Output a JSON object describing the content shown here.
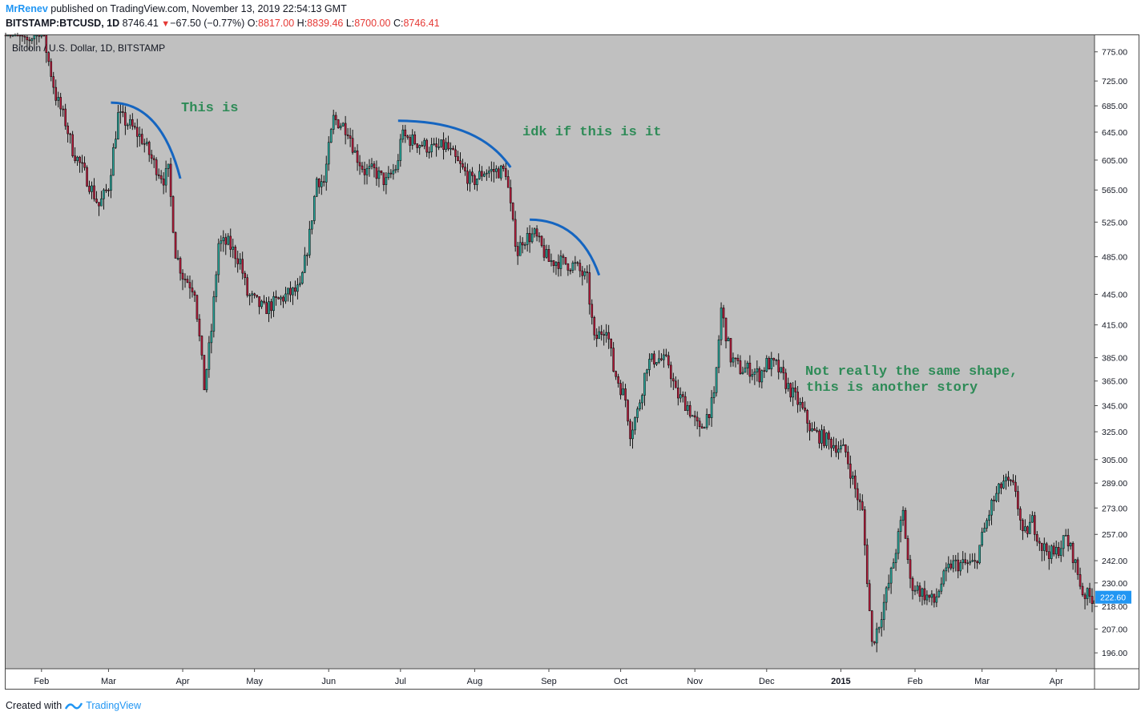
{
  "header": {
    "author": "MrRenev",
    "published_text": "published on TradingView.com, November 13, 2019 22:54:13 GMT",
    "symbol": "BITSTAMP:BTCUSD, 1D",
    "last": "8746.41",
    "change_arrow": "▼",
    "change": "−67.50 (−0.77%)",
    "o_label": "O:",
    "o_value": "8817.00",
    "h_label": "H:",
    "h_value": "8839.46",
    "l_label": "L:",
    "l_value": "8700.00",
    "c_label": "C:",
    "c_value": "8746.41"
  },
  "footer": {
    "created_with": "Created with",
    "brand": "TradingView"
  },
  "colors": {
    "plot_bg": "#c0c0c0",
    "up_candle": "#26a69a",
    "down_candle": "#b71c3c",
    "wick": "#000000",
    "arc": "#1565c0",
    "annotation": "#2e8b57",
    "price_badge": "#2196f3"
  },
  "chart_data": {
    "type": "candlestick",
    "title": "Bitcoin / U.S. Dollar, 1D, BITSTAMP",
    "x_tick_labels": [
      "Feb",
      "Mar",
      "Apr",
      "May",
      "Jun",
      "Jul",
      "Aug",
      "Sep",
      "Oct",
      "Nov",
      "Dec",
      "2015",
      "Feb",
      "Mar",
      "Apr"
    ],
    "x_tick_dates": [
      "2014-02-01",
      "2014-03-01",
      "2014-04-01",
      "2014-05-01",
      "2014-06-01",
      "2014-07-01",
      "2014-08-01",
      "2014-09-01",
      "2014-10-01",
      "2014-11-01",
      "2014-12-01",
      "2015-01-01",
      "2015-02-01",
      "2015-03-01",
      "2015-04-01"
    ],
    "x_range": [
      "2014-01-17",
      "2015-04-17"
    ],
    "y_scale": "log",
    "y_tick_labels": [
      "775.00",
      "725.00",
      "685.00",
      "645.00",
      "605.00",
      "565.00",
      "525.00",
      "485.00",
      "445.00",
      "415.00",
      "385.00",
      "365.00",
      "345.00",
      "325.00",
      "305.00",
      "289.00",
      "273.00",
      "257.00",
      "242.00",
      "230.00",
      "218.00",
      "207.00",
      "196.00"
    ],
    "y_ticks": [
      775,
      725,
      685,
      645,
      605,
      565,
      525,
      485,
      445,
      415,
      385,
      365,
      345,
      325,
      305,
      289,
      273,
      257,
      242,
      230,
      218,
      207,
      196
    ],
    "ylim": [
      189,
      805
    ],
    "last_price_label": "222.60",
    "last_price": 222.6,
    "series_path_close": [
      [
        "2014-01-17",
        830
      ],
      [
        "2014-01-25",
        790
      ],
      [
        "2014-02-01",
        820
      ],
      [
        "2014-02-07",
        700
      ],
      [
        "2014-02-11",
        660
      ],
      [
        "2014-02-14",
        620
      ],
      [
        "2014-02-20",
        580
      ],
      [
        "2014-02-25",
        545
      ],
      [
        "2014-03-01",
        570
      ],
      [
        "2014-03-05",
        670
      ],
      [
        "2014-03-10",
        655
      ],
      [
        "2014-03-15",
        635
      ],
      [
        "2014-03-20",
        600
      ],
      [
        "2014-03-24",
        580
      ],
      [
        "2014-03-26",
        590
      ],
      [
        "2014-03-29",
        490
      ],
      [
        "2014-04-01",
        465
      ],
      [
        "2014-04-06",
        450
      ],
      [
        "2014-04-10",
        360
      ],
      [
        "2014-04-13",
        410
      ],
      [
        "2014-04-16",
        500
      ],
      [
        "2014-04-20",
        500
      ],
      [
        "2014-04-25",
        480
      ],
      [
        "2014-04-28",
        445
      ],
      [
        "2014-05-05",
        430
      ],
      [
        "2014-05-15",
        445
      ],
      [
        "2014-05-20",
        450
      ],
      [
        "2014-05-24",
        510
      ],
      [
        "2014-05-27",
        580
      ],
      [
        "2014-05-30",
        575
      ],
      [
        "2014-06-01",
        620
      ],
      [
        "2014-06-03",
        665
      ],
      [
        "2014-06-09",
        650
      ],
      [
        "2014-06-12",
        615
      ],
      [
        "2014-06-16",
        590
      ],
      [
        "2014-06-20",
        590
      ],
      [
        "2014-06-25",
        575
      ],
      [
        "2014-06-30",
        600
      ],
      [
        "2014-07-01",
        640
      ],
      [
        "2014-07-08",
        630
      ],
      [
        "2014-07-15",
        620
      ],
      [
        "2014-07-20",
        625
      ],
      [
        "2014-07-25",
        600
      ],
      [
        "2014-07-31",
        575
      ],
      [
        "2014-08-05",
        590
      ],
      [
        "2014-08-10",
        590
      ],
      [
        "2014-08-14",
        590
      ],
      [
        "2014-08-17",
        520
      ],
      [
        "2014-08-19",
        490
      ],
      [
        "2014-08-21",
        505
      ],
      [
        "2014-08-26",
        510
      ],
      [
        "2014-09-01",
        480
      ],
      [
        "2014-09-05",
        480
      ],
      [
        "2014-09-12",
        475
      ],
      [
        "2014-09-17",
        460
      ],
      [
        "2014-09-20",
        400
      ],
      [
        "2014-09-25",
        415
      ],
      [
        "2014-09-28",
        375
      ],
      [
        "2014-10-03",
        350
      ],
      [
        "2014-10-05",
        325
      ],
      [
        "2014-10-08",
        340
      ],
      [
        "2014-10-12",
        380
      ],
      [
        "2014-10-16",
        385
      ],
      [
        "2014-10-21",
        380
      ],
      [
        "2014-10-24",
        355
      ],
      [
        "2014-10-29",
        345
      ],
      [
        "2014-11-03",
        325
      ],
      [
        "2014-11-09",
        350
      ],
      [
        "2014-11-12",
        430
      ],
      [
        "2014-11-16",
        385
      ],
      [
        "2014-11-20",
        375
      ],
      [
        "2014-11-24",
        375
      ],
      [
        "2014-11-28",
        370
      ],
      [
        "2014-12-01",
        380
      ],
      [
        "2014-12-05",
        378
      ],
      [
        "2014-12-10",
        360
      ],
      [
        "2014-12-15",
        345
      ],
      [
        "2014-12-20",
        325
      ],
      [
        "2014-12-25",
        320
      ],
      [
        "2014-12-30",
        315
      ],
      [
        "2015-01-03",
        310
      ],
      [
        "2015-01-07",
        285
      ],
      [
        "2015-01-10",
        270
      ],
      [
        "2015-01-14",
        200
      ],
      [
        "2015-01-17",
        210
      ],
      [
        "2015-01-22",
        235
      ],
      [
        "2015-01-27",
        270
      ],
      [
        "2015-01-30",
        230
      ],
      [
        "2015-02-04",
        225
      ],
      [
        "2015-02-09",
        220
      ],
      [
        "2015-02-12",
        230
      ],
      [
        "2015-02-16",
        240
      ],
      [
        "2015-02-21",
        240
      ],
      [
        "2015-02-26",
        240
      ],
      [
        "2015-03-01",
        255
      ],
      [
        "2015-03-05",
        275
      ],
      [
        "2015-03-10",
        290
      ],
      [
        "2015-03-15",
        285
      ],
      [
        "2015-03-18",
        255
      ],
      [
        "2015-03-22",
        265
      ],
      [
        "2015-03-26",
        250
      ],
      [
        "2015-03-31",
        245
      ],
      [
        "2015-04-05",
        255
      ],
      [
        "2015-04-08",
        245
      ],
      [
        "2015-04-12",
        225
      ],
      [
        "2015-04-15",
        222.6
      ]
    ],
    "annotations": [
      {
        "text": "This is"
      },
      {
        "text": "idk if this is it"
      },
      {
        "text": "Not really the same shape,"
      },
      {
        "text": "this is another story"
      }
    ],
    "arcs": [
      {
        "start": [
          "2014-03-02",
          690
        ],
        "end": [
          "2014-03-31",
          580
        ]
      },
      {
        "start": [
          "2014-06-30",
          662
        ],
        "end": [
          "2014-08-16",
          595
        ]
      },
      {
        "start": [
          "2014-08-24",
          528
        ],
        "end": [
          "2014-09-22",
          465
        ]
      }
    ]
  }
}
